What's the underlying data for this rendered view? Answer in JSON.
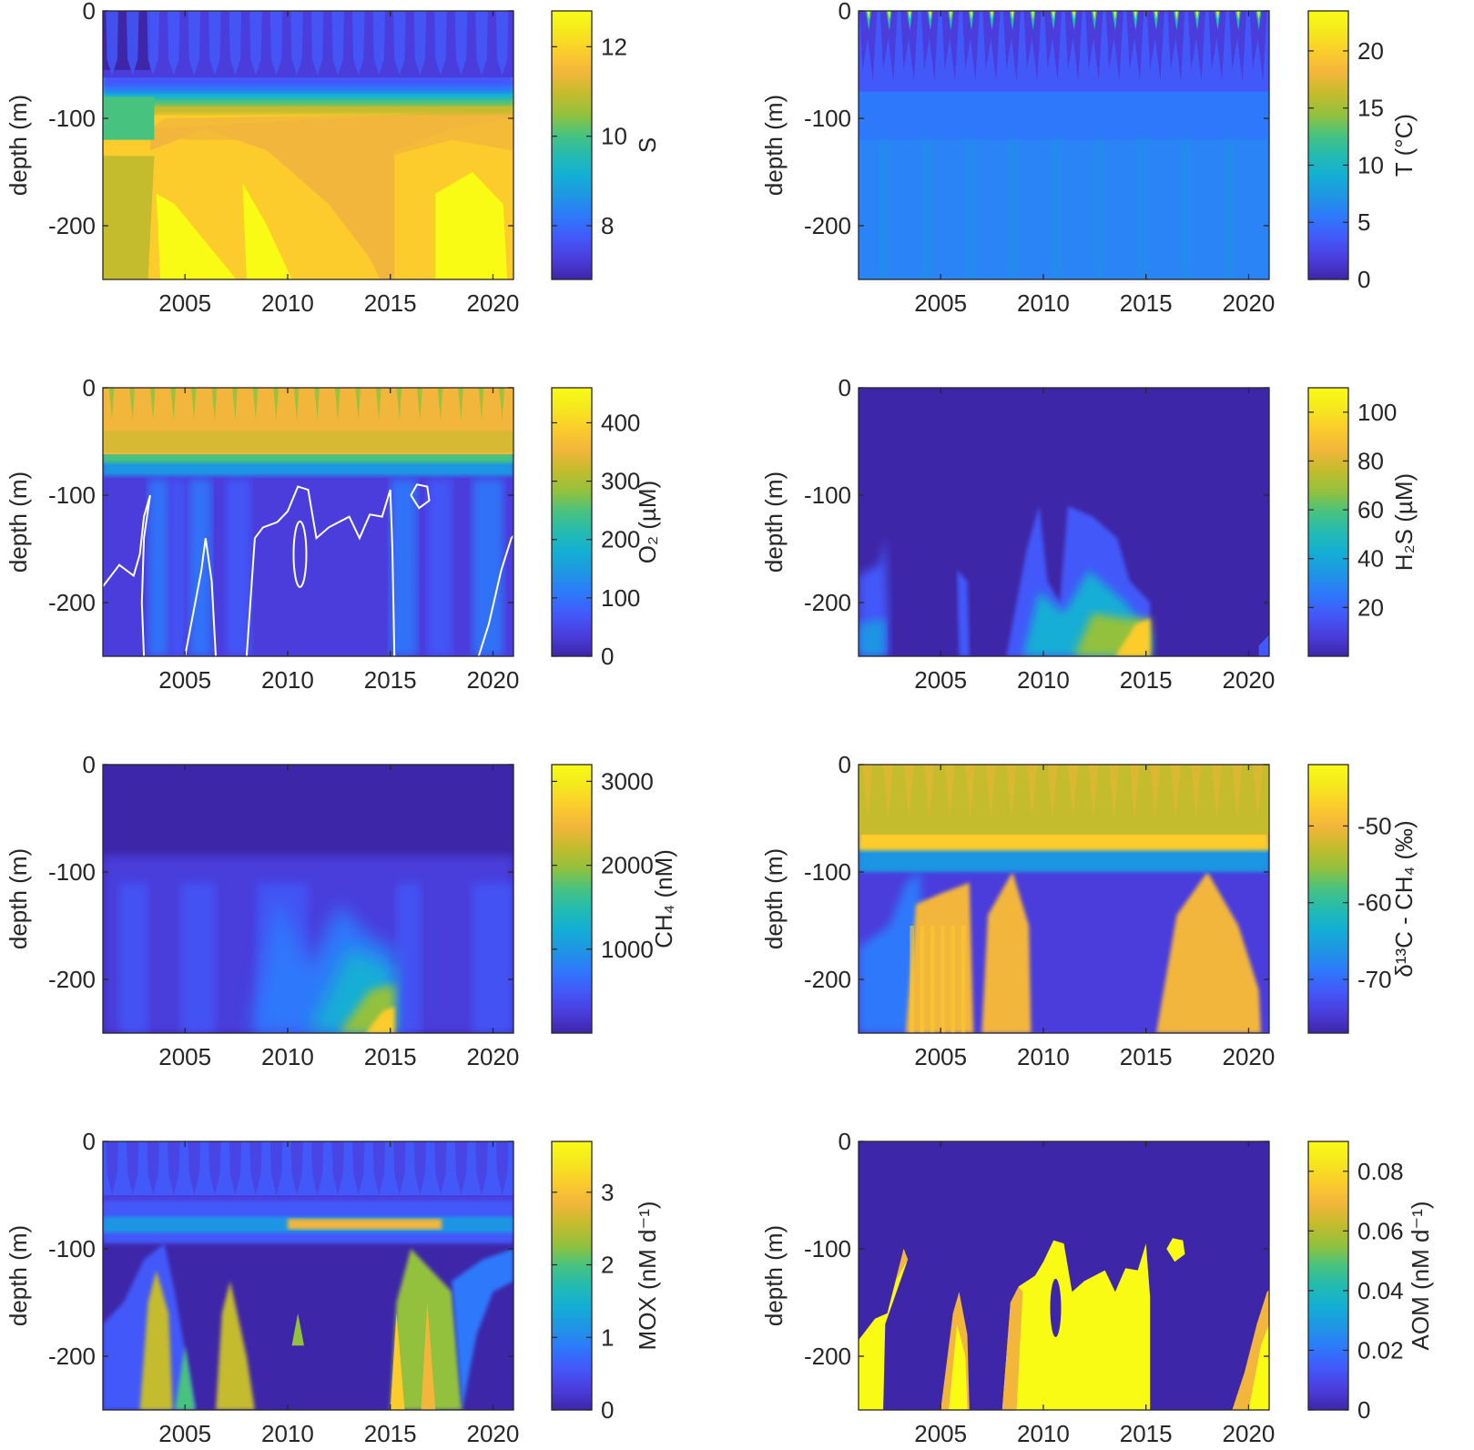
{
  "chart_data": [
    {
      "type": "heatmap",
      "id": "salinity",
      "ylabel": "depth (m)",
      "colorbar_label": "S",
      "x_ticks": [
        "2005",
        "2010",
        "2015",
        "2020"
      ],
      "y_ticks": [
        "0",
        "-100",
        "-200"
      ],
      "colorbar_ticks": [
        "8",
        "10",
        "12"
      ],
      "xlim": [
        2001,
        2021
      ],
      "ylim": [
        -250,
        0
      ],
      "clim": [
        6.8,
        12.8
      ],
      "colorbar_tick_values": [
        8,
        10,
        12
      ]
    },
    {
      "type": "heatmap",
      "id": "temperature",
      "ylabel": "depth (m)",
      "colorbar_label": "T (°C)",
      "x_ticks": [
        "2005",
        "2010",
        "2015",
        "2020"
      ],
      "y_ticks": [
        "0",
        "-100",
        "-200"
      ],
      "colorbar_ticks": [
        "0",
        "5",
        "10",
        "15",
        "20"
      ],
      "xlim": [
        2001,
        2021
      ],
      "ylim": [
        -250,
        0
      ],
      "clim": [
        0,
        23.5
      ],
      "colorbar_tick_values": [
        0,
        5,
        10,
        15,
        20
      ]
    },
    {
      "type": "heatmap",
      "id": "oxygen",
      "ylabel": "depth (m)",
      "colorbar_label": "O₂ (µM)",
      "x_ticks": [
        "2005",
        "2010",
        "2015",
        "2020"
      ],
      "y_ticks": [
        "0",
        "-100",
        "-200"
      ],
      "colorbar_ticks": [
        "0",
        "100",
        "200",
        "300",
        "400"
      ],
      "xlim": [
        2001,
        2021
      ],
      "ylim": [
        -250,
        0
      ],
      "clim": [
        0,
        460
      ],
      "colorbar_tick_values": [
        0,
        100,
        200,
        300,
        400
      ]
    },
    {
      "type": "heatmap",
      "id": "hydrogen-sulfide",
      "ylabel": "depth (m)",
      "colorbar_label": "H₂S (µM)",
      "x_ticks": [
        "2005",
        "2010",
        "2015",
        "2020"
      ],
      "y_ticks": [
        "0",
        "-100",
        "-200"
      ],
      "colorbar_ticks": [
        "20",
        "40",
        "60",
        "80",
        "100"
      ],
      "xlim": [
        2001,
        2021
      ],
      "ylim": [
        -250,
        0
      ],
      "clim": [
        0,
        110
      ],
      "colorbar_tick_values": [
        20,
        40,
        60,
        80,
        100
      ]
    },
    {
      "type": "heatmap",
      "id": "methane",
      "ylabel": "depth (m)",
      "colorbar_label": "CH₄ (nM)",
      "x_ticks": [
        "2005",
        "2010",
        "2015",
        "2020"
      ],
      "y_ticks": [
        "0",
        "-100",
        "-200"
      ],
      "colorbar_ticks": [
        "1000",
        "2000",
        "3000"
      ],
      "xlim": [
        2001,
        2021
      ],
      "ylim": [
        -250,
        0
      ],
      "clim": [
        0,
        3200
      ],
      "colorbar_tick_values": [
        1000,
        2000,
        3000
      ]
    },
    {
      "type": "heatmap",
      "id": "delta13c-methane",
      "ylabel": "depth (m)",
      "colorbar_label": "δ¹³C - CH₄ (‰)",
      "x_ticks": [
        "2005",
        "2010",
        "2015",
        "2020"
      ],
      "y_ticks": [
        "0",
        "-100",
        "-200"
      ],
      "colorbar_ticks": [
        "-70",
        "-60",
        "-50"
      ],
      "xlim": [
        2001,
        2021
      ],
      "ylim": [
        -250,
        0
      ],
      "clim": [
        -77,
        -42
      ],
      "colorbar_tick_values": [
        -70,
        -60,
        -50
      ]
    },
    {
      "type": "heatmap",
      "id": "mox",
      "ylabel": "depth (m)",
      "colorbar_label": "MOX (nM d⁻¹)",
      "x_ticks": [
        "2005",
        "2010",
        "2015",
        "2020"
      ],
      "y_ticks": [
        "0",
        "-100",
        "-200"
      ],
      "colorbar_ticks": [
        "0",
        "1",
        "2",
        "3"
      ],
      "xlim": [
        2001,
        2021
      ],
      "ylim": [
        -250,
        0
      ],
      "clim": [
        0,
        3.7
      ],
      "colorbar_tick_values": [
        0,
        1,
        2,
        3
      ]
    },
    {
      "type": "heatmap",
      "id": "aom",
      "ylabel": "depth (m)",
      "colorbar_label": "AOM (nM d⁻¹)",
      "x_ticks": [
        "2005",
        "2010",
        "2015",
        "2020"
      ],
      "y_ticks": [
        "0",
        "-100",
        "-200"
      ],
      "colorbar_ticks": [
        "0",
        "0.02",
        "0.04",
        "0.06",
        "0.08"
      ],
      "xlim": [
        2001,
        2021
      ],
      "ylim": [
        -250,
        0
      ],
      "clim": [
        0,
        0.09
      ],
      "colorbar_tick_values": [
        0,
        0.02,
        0.04,
        0.06,
        0.08
      ]
    }
  ],
  "colors": {
    "parula": [
      "#3e26a8",
      "#4a3ddc",
      "#4358f9",
      "#2e78fb",
      "#1f95e3",
      "#13aed5",
      "#23bbb1",
      "#48c27f",
      "#93c13d",
      "#c4bb2d",
      "#f2b63c",
      "#fbcc2b",
      "#f5e81e",
      "#f9fb15"
    ],
    "contour": "#ffffff",
    "axis": "#262626"
  }
}
